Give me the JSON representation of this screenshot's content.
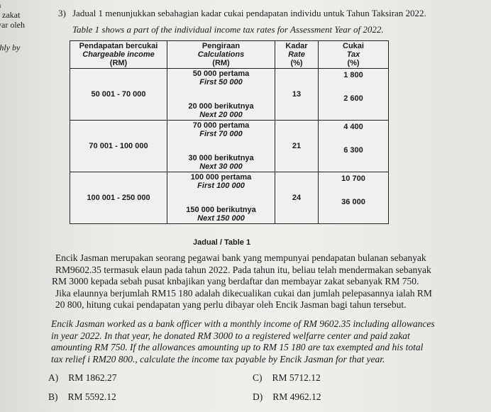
{
  "margin_text": [
    "a",
    "r zakat",
    "yar oleh",
    "thly by"
  ],
  "question": {
    "number": "3)",
    "intro_ms": "Jadual 1 menunjukkan sebahagian kadar cukai pendapatan individu untuk Tahun Taksiran 2022.",
    "intro_en": "Table 1 shows a part of the individual income tax rates for Assessment Year of 2022."
  },
  "table": {
    "headers": [
      {
        "ms": "Pendapatan bercukai",
        "en": "Chargeable income",
        "unit": "(RM)"
      },
      {
        "ms": "Pengiraan",
        "en": "Calculations",
        "unit": "(RM)"
      },
      {
        "ms": "Kadar",
        "en": "Rate",
        "unit": "(%)"
      },
      {
        "ms": "Cukai",
        "en": "Tax",
        "unit": "(%)"
      }
    ],
    "rows": [
      {
        "income": "50 001 - 70 000",
        "calc1_ms": "50 000 pertama",
        "calc1_en": "First 50 000",
        "calc2_ms": "20 000 berikutnya",
        "calc2_en": "Next 20 000",
        "rate": "13",
        "tax1": "1 800",
        "tax2": "2 600"
      },
      {
        "income": "70 001 - 100 000",
        "calc1_ms": "70 000 pertama",
        "calc1_en": "First 70 000",
        "calc2_ms": "30 000 berikutnya",
        "calc2_en": "Next 30 000",
        "rate": "21",
        "tax1": "4 400",
        "tax2": "6 300"
      },
      {
        "income": "100 001 - 250 000",
        "calc1_ms": "100 000 pertama",
        "calc1_en": "First 100 000",
        "calc2_ms": "150 000 berikutnya",
        "calc2_en": "Next 150 000",
        "rate": "24",
        "tax1": "10 700",
        "tax2": "36 000"
      }
    ],
    "caption": "Jadual / Table 1"
  },
  "body_ms": [
    "Encik Jasman merupakan seorang pegawai bank yang mempunyai pendapatan bulanan sebanyak",
    "RM9602.35 termasuk elaun pada tahun 2022. Pada tahun itu, beliau telah mendermakan sebanyak",
    "RM 3000 kepada sebah pusat knbajikan yang berdaftar dan membayar zakat sebanyak RM 750.",
    "Jika elaunnya berjumlah RM15 180 adalah dikecualikan cukai dan jumlah pelepasannya ialah RM",
    "20 800, hitung cukai pendapatan yang perlu dibayar oleh Encik Jasman bagi tahun tersebut."
  ],
  "body_en": [
    "Encik Jasman worked as a bank officer with a monthly income of RM 9602.35 including allowances",
    "in year 2022. In that year, he donated RM 3000 to a registered welfarre center and paid zakat",
    "amounting RM 750. If the allowances amounting up to RM 15 180 are tax exempted and his total",
    "tax relief i RM20 800., calculate the income tax payable by Encik Jasman for that year."
  ],
  "options": [
    {
      "letter": "A)",
      "value": "RM 1862.27"
    },
    {
      "letter": "B)",
      "value": "RM 5592.12"
    },
    {
      "letter": "C)",
      "value": "RM 5712.12"
    },
    {
      "letter": "D)",
      "value": "RM 4962.12"
    }
  ]
}
